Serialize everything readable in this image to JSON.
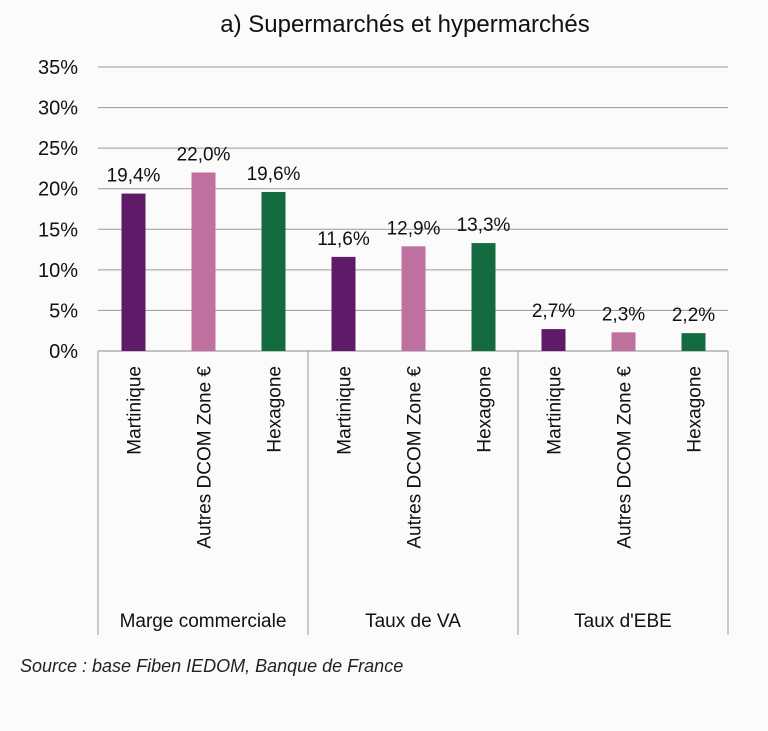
{
  "chart_data": {
    "type": "bar",
    "title": "a) Supermarchés et hypermarchés",
    "groups": [
      "Marge commerciale",
      "Taux de VA",
      "Taux d'EBE"
    ],
    "categories": [
      "Martinique",
      "Autres DCOM Zone €",
      "Hexagone"
    ],
    "series_colors": [
      "#5f1a68",
      "#c0709e",
      "#156b40"
    ],
    "values": [
      [
        19.4,
        22.0,
        19.6
      ],
      [
        11.6,
        12.9,
        13.3
      ],
      [
        2.7,
        2.3,
        2.2
      ]
    ],
    "data_labels": [
      [
        "19,4%",
        "22,0%",
        "19,6%"
      ],
      [
        "11,6%",
        "12,9%",
        "13,3%"
      ],
      [
        "2,7%",
        "2,3%",
        "2,2%"
      ]
    ],
    "y_ticks": [
      "0%",
      "5%",
      "10%",
      "15%",
      "20%",
      "25%",
      "30%",
      "35%"
    ],
    "ylim": [
      0,
      35
    ],
    "grid": true,
    "legend": "none"
  },
  "source": "Source : base Fiben IEDOM, Banque de France"
}
